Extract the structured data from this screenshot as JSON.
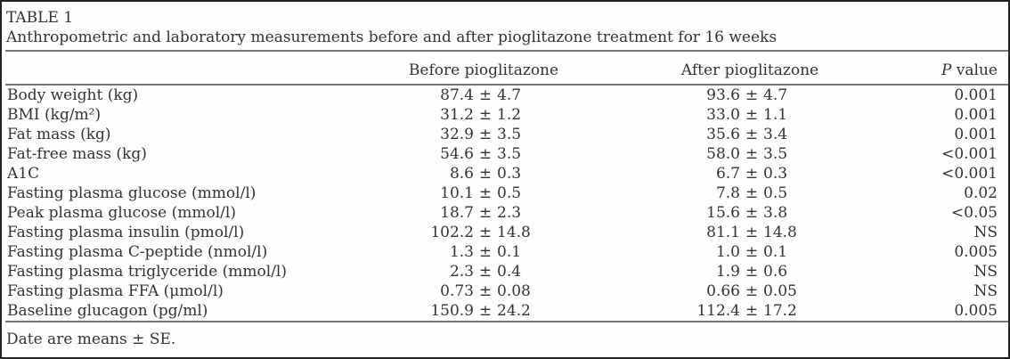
{
  "caption": {
    "label": "TABLE 1",
    "title": "Anthropometric and laboratory measurements before and after pioglitazone treatment for 16 weeks"
  },
  "header": {
    "before": "Before pioglitazone",
    "after": "After pioglitazone",
    "p_italic": "P",
    "p_rest": " value"
  },
  "symbols": {
    "pm": "±"
  },
  "footnote": "Date are means ± SE.",
  "colors": {
    "text": "#333333",
    "rule": "#777777",
    "border": "#222222",
    "background": "#fefefe"
  },
  "table": {
    "rows": [
      {
        "label": "Body weight (kg)",
        "before_mean": "87.4",
        "before_se": "4.7",
        "after_mean": "93.6",
        "after_se": "4.7",
        "p": "0.001"
      },
      {
        "label": "BMI (kg/m²)",
        "before_mean": "31.2",
        "before_se": "1.2",
        "after_mean": "33.0",
        "after_se": "1.1",
        "p": "0.001"
      },
      {
        "label": "Fat mass (kg)",
        "before_mean": "32.9",
        "before_se": "3.5",
        "after_mean": "35.6",
        "after_se": "3.4",
        "p": "0.001"
      },
      {
        "label": "Fat-free mass (kg)",
        "before_mean": "54.6",
        "before_se": "3.5",
        "after_mean": "58.0",
        "after_se": "3.5",
        "p": "<0.001"
      },
      {
        "label": "A1C",
        "before_mean": "8.6",
        "before_se": "0.3",
        "after_mean": "6.7",
        "after_se": "0.3",
        "p": "<0.001"
      },
      {
        "label": "Fasting plasma glucose (mmol/l)",
        "before_mean": "10.1",
        "before_se": "0.5",
        "after_mean": "7.8",
        "after_se": "0.5",
        "p": "0.02"
      },
      {
        "label": "Peak plasma glucose (mmol/l)",
        "before_mean": "18.7",
        "before_se": "2.3",
        "after_mean": "15.6",
        "after_se": "3.8",
        "p": "<0.05"
      },
      {
        "label": "Fasting plasma insulin (pmol/l)",
        "before_mean": "102.2",
        "before_se": "14.8",
        "after_mean": "81.1",
        "after_se": "14.8",
        "p": "NS"
      },
      {
        "label": "Fasting plasma C-peptide (nmol/l)",
        "before_mean": "1.3",
        "before_se": "0.1",
        "after_mean": "1.0",
        "after_se": "0.1",
        "p": "0.005"
      },
      {
        "label": "Fasting plasma triglyceride (mmol/l)",
        "before_mean": "2.3",
        "before_se": "0.4",
        "after_mean": "1.9",
        "after_se": "0.6",
        "p": "NS"
      },
      {
        "label": "Fasting plasma FFA (μmol/l)",
        "before_mean": "0.73",
        "before_se": "0.08",
        "after_mean": "0.66",
        "after_se": "0.05",
        "p": "NS"
      },
      {
        "label": "Baseline glucagon (pg/ml)",
        "before_mean": "150.9",
        "before_se": "24.2",
        "after_mean": "112.4",
        "after_se": "17.2",
        "p": "0.005"
      }
    ]
  }
}
